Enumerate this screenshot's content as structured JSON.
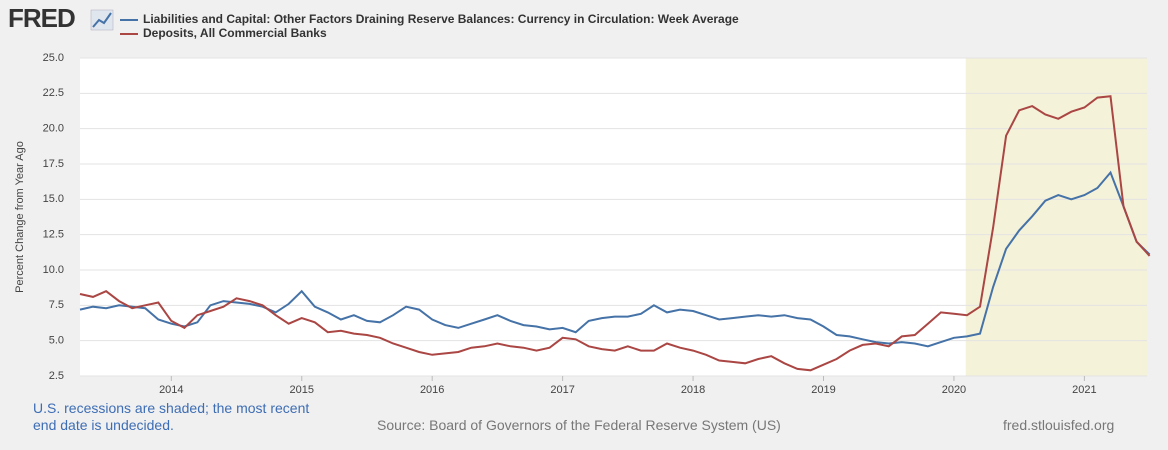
{
  "logo": "FRED",
  "chart_data": {
    "type": "line",
    "y_label": "Percent Change from Year Ago",
    "x": [
      2013.3,
      2013.4,
      2013.5,
      2013.6,
      2013.7,
      2013.8,
      2013.9,
      2014.0,
      2014.1,
      2014.2,
      2014.3,
      2014.4,
      2014.5,
      2014.6,
      2014.7,
      2014.8,
      2014.9,
      2015.0,
      2015.1,
      2015.2,
      2015.3,
      2015.4,
      2015.5,
      2015.6,
      2015.7,
      2015.8,
      2015.9,
      2016.0,
      2016.1,
      2016.2,
      2016.3,
      2016.4,
      2016.5,
      2016.6,
      2016.7,
      2016.8,
      2016.9,
      2017.0,
      2017.1,
      2017.2,
      2017.3,
      2017.4,
      2017.5,
      2017.6,
      2017.7,
      2017.8,
      2017.9,
      2018.0,
      2018.1,
      2018.2,
      2018.3,
      2018.4,
      2018.5,
      2018.6,
      2018.7,
      2018.8,
      2018.9,
      2019.0,
      2019.1,
      2019.2,
      2019.3,
      2019.4,
      2019.5,
      2019.6,
      2019.7,
      2019.8,
      2019.9,
      2020.0,
      2020.1,
      2020.2,
      2020.3,
      2020.4,
      2020.5,
      2020.6,
      2020.7,
      2020.8,
      2020.9,
      2021.0,
      2021.1,
      2021.2,
      2021.3,
      2021.4,
      2021.5
    ],
    "series": [
      {
        "name": "Liabilities and Capital: Other Factors Draining Reserve Balances: Currency in Circulation: Week Average",
        "color": "#4572a7",
        "values": [
          7.2,
          7.4,
          7.3,
          7.5,
          7.4,
          7.3,
          6.5,
          6.2,
          6.0,
          6.3,
          7.5,
          7.8,
          7.7,
          7.6,
          7.4,
          7.0,
          7.6,
          8.5,
          7.4,
          7.0,
          6.5,
          6.8,
          6.4,
          6.3,
          6.8,
          7.4,
          7.2,
          6.5,
          6.1,
          5.9,
          6.2,
          6.5,
          6.8,
          6.4,
          6.1,
          6.0,
          5.8,
          5.9,
          5.6,
          6.4,
          6.6,
          6.7,
          6.7,
          6.9,
          7.5,
          7.0,
          7.2,
          7.1,
          6.8,
          6.5,
          6.6,
          6.7,
          6.8,
          6.7,
          6.8,
          6.6,
          6.5,
          6.0,
          5.4,
          5.3,
          5.1,
          4.9,
          4.8,
          4.9,
          4.8,
          4.6,
          4.9,
          5.2,
          5.3,
          5.5,
          8.8,
          11.5,
          12.8,
          13.8,
          14.9,
          15.3,
          15.0,
          15.3,
          15.8,
          16.9,
          14.5,
          12.0,
          11.1
        ]
      },
      {
        "name": "Deposits, All Commercial Banks",
        "color": "#aa4643",
        "values": [
          8.3,
          8.1,
          8.5,
          7.8,
          7.3,
          7.5,
          7.7,
          6.4,
          5.9,
          6.8,
          7.1,
          7.4,
          8.0,
          7.8,
          7.5,
          6.8,
          6.2,
          6.6,
          6.3,
          5.6,
          5.7,
          5.5,
          5.4,
          5.2,
          4.8,
          4.5,
          4.2,
          4.0,
          4.1,
          4.2,
          4.5,
          4.6,
          4.8,
          4.6,
          4.5,
          4.3,
          4.5,
          5.2,
          5.1,
          4.6,
          4.4,
          4.3,
          4.6,
          4.3,
          4.3,
          4.8,
          4.5,
          4.3,
          4.0,
          3.6,
          3.5,
          3.4,
          3.7,
          3.9,
          3.4,
          3.0,
          2.9,
          3.3,
          3.7,
          4.3,
          4.7,
          4.8,
          4.6,
          5.3,
          5.4,
          6.2,
          7.0,
          6.9,
          6.8,
          7.4,
          13.0,
          19.5,
          21.3,
          21.6,
          21.0,
          20.7,
          21.2,
          21.5,
          22.2,
          22.3,
          14.5,
          12.0,
          11.0
        ]
      }
    ],
    "xlim": [
      2013.3,
      2021.48
    ],
    "xticks": [
      2014,
      2015,
      2016,
      2017,
      2018,
      2019,
      2020,
      2021
    ],
    "ylim": [
      2.5,
      25
    ],
    "yticks": [
      2.5,
      {
        "value": 5,
        "label": "5.0"
      },
      7.5,
      {
        "value": 10,
        "label": "10.0"
      },
      12.5,
      {
        "value": 15,
        "label": "15.0"
      },
      17.5,
      {
        "value": 20,
        "label": "20.0"
      },
      22.5,
      {
        "value": 25,
        "label": "25.0"
      }
    ],
    "grid": true,
    "recession_color": "#f5f2da",
    "recessions": [
      [
        2020.09,
        2021.48
      ]
    ]
  },
  "footer": {
    "note": "U.S. recessions are shaded; the most recent end date is undecided.",
    "source": "Source: Board of Governors of the Federal Reserve System (US)",
    "url": "fred.stlouisfed.org"
  }
}
